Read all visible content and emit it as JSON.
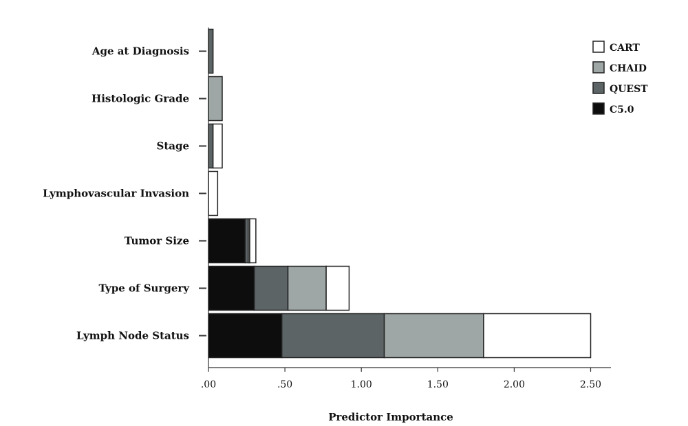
{
  "chart_data": {
    "type": "bar",
    "orientation": "horizontal",
    "stacked": true,
    "categories": [
      "Age at Diagnosis",
      "Histologic Grade",
      "Stage",
      "Lymphovascular Invasion",
      "Tumor Size",
      "Type of Surgery",
      "Lymph Node Status"
    ],
    "series": [
      {
        "name": "C5.0",
        "color": "#0d0d0d",
        "values": [
          0.0,
          0.0,
          0.0,
          0.0,
          0.24,
          0.3,
          0.48
        ]
      },
      {
        "name": "QUEST",
        "color": "#5d6466",
        "values": [
          0.03,
          0.0,
          0.03,
          0.0,
          0.02,
          0.22,
          0.67
        ]
      },
      {
        "name": "CHAID",
        "color": "#9ea6a6",
        "values": [
          0.0,
          0.09,
          0.0,
          0.0,
          0.01,
          0.25,
          0.65
        ]
      },
      {
        "name": "CART",
        "color": "#ffffff",
        "values": [
          0.0,
          0.0,
          0.06,
          0.06,
          0.04,
          0.15,
          0.7
        ]
      }
    ],
    "xlim": [
      0,
      2.6
    ],
    "xticks": [
      0,
      0.5,
      1.0,
      1.5,
      2.0,
      2.5
    ],
    "xtick_labels": [
      ".00",
      ".50",
      "1.00",
      "1.50",
      "2.00",
      "2.50"
    ],
    "xlabel": "Predictor Importance",
    "ylabel": "",
    "title": "",
    "legend": {
      "position": "top-right",
      "order": [
        "CART",
        "CHAID",
        "QUEST",
        "C5.0"
      ]
    },
    "grid": false
  }
}
